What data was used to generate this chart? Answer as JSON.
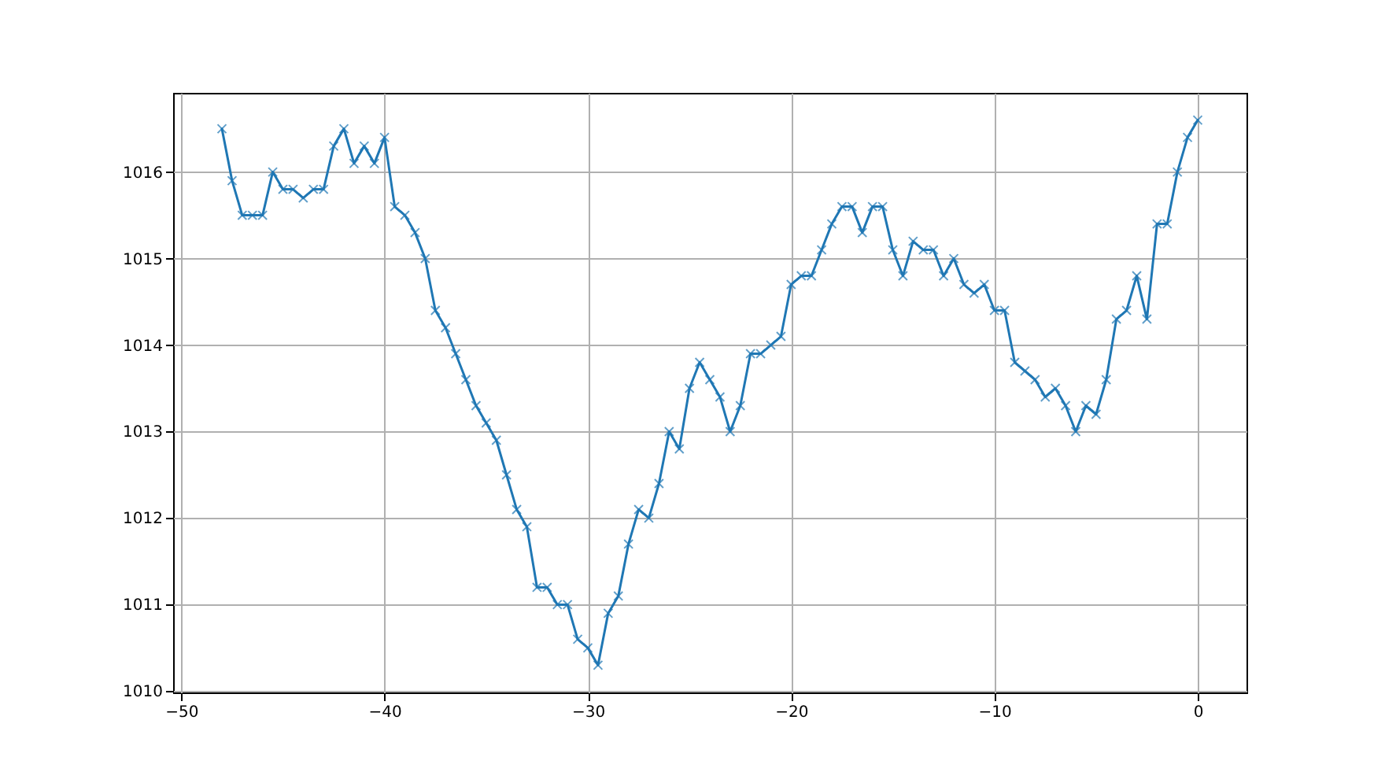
{
  "chart_data": {
    "type": "line",
    "x": [
      -48,
      -47.5,
      -47,
      -46.5,
      -46,
      -45.5,
      -45,
      -44.5,
      -44,
      -43.5,
      -43,
      -42.5,
      -42,
      -41.5,
      -41,
      -40.5,
      -40,
      -39.5,
      -39,
      -38.5,
      -38,
      -37.5,
      -37,
      -36.5,
      -36,
      -35.5,
      -35,
      -34.5,
      -34,
      -33.5,
      -33,
      -32.5,
      -32,
      -31.5,
      -31,
      -30.5,
      -30,
      -29.5,
      -29,
      -28.5,
      -28,
      -27.5,
      -27,
      -26.5,
      -26,
      -25.5,
      -25,
      -24.5,
      -24,
      -23.5,
      -23,
      -22.5,
      -22,
      -21.5,
      -21,
      -20.5,
      -20,
      -19.5,
      -19,
      -18.5,
      -18,
      -17.5,
      -17,
      -16.5,
      -16,
      -15.5,
      -15,
      -14.5,
      -14,
      -13.5,
      -13,
      -12.5,
      -12,
      -11.5,
      -11,
      -10.5,
      -10,
      -9.5,
      -9,
      -8.5,
      -8,
      -7.5,
      -7,
      -6.5,
      -6,
      -5.5,
      -5,
      -4.5,
      -4,
      -3.5,
      -3,
      -2.5,
      -2,
      -1.5,
      -1,
      -0.5,
      0
    ],
    "series": [
      {
        "color": "#1f77b4",
        "values": [
          1016.5,
          1015.9,
          1015.5,
          1015.5,
          1015.5,
          1016.0,
          1015.8,
          1015.8,
          1015.7,
          1015.8,
          1015.8,
          1016.3,
          1016.5,
          1016.1,
          1016.3,
          1016.1,
          1016.4,
          1015.6,
          1015.5,
          1015.3,
          1015.0,
          1014.4,
          1014.2,
          1013.9,
          1013.6,
          1013.3,
          1013.1,
          1012.9,
          1012.5,
          1012.1,
          1011.9,
          1011.2,
          1011.2,
          1011.0,
          1011.0,
          1010.6,
          1010.5,
          1010.3,
          1010.9,
          1011.1,
          1011.7,
          1012.1,
          1012.0,
          1012.4,
          1013.0,
          1012.8,
          1013.5,
          1013.8,
          1013.6,
          1013.4,
          1013.0,
          1013.3,
          1013.9,
          1013.9,
          1014.0,
          1014.1,
          1014.7,
          1014.8,
          1014.8,
          1015.1,
          1015.4,
          1015.6,
          1015.6,
          1015.3,
          1015.6,
          1015.6,
          1015.1,
          1014.8,
          1015.2,
          1015.1,
          1015.1,
          1014.8,
          1015.0,
          1014.7,
          1014.6,
          1014.7,
          1014.4,
          1014.4,
          1013.8,
          1013.7,
          1013.6,
          1013.4,
          1013.5,
          1013.3,
          1013.0,
          1013.3,
          1013.2,
          1013.6,
          1014.3,
          1014.4,
          1014.8,
          1014.3,
          1015.4,
          1015.4,
          1016.0,
          1016.4,
          1016.6
        ]
      }
    ],
    "xlim": [
      -50.4,
      2.4
    ],
    "xticks": [
      -50,
      -40,
      -30,
      -20,
      -10,
      0
    ],
    "ylim": [
      1009.985,
      1016.915
    ],
    "yticks": [
      1010,
      1011,
      1012,
      1013,
      1014,
      1015,
      1016
    ],
    "grid": true,
    "marker": "cross",
    "line_style": "solid"
  }
}
